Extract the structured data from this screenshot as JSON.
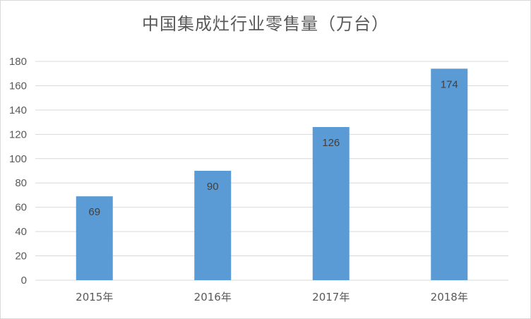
{
  "chart_data": {
    "type": "bar",
    "title": "中国集成灶行业零售量（万台）",
    "categories": [
      "2015年",
      "2016年",
      "2017年",
      "2018年"
    ],
    "values": [
      69,
      90,
      126,
      174
    ],
    "ylim": [
      0,
      180
    ],
    "yticks": [
      0,
      20,
      40,
      60,
      80,
      100,
      120,
      140,
      160,
      180
    ],
    "grid": true,
    "legend": "none",
    "bar_color": "#5b9bd5",
    "grid_color": "#d9d9d9",
    "text_color": "#595959"
  }
}
